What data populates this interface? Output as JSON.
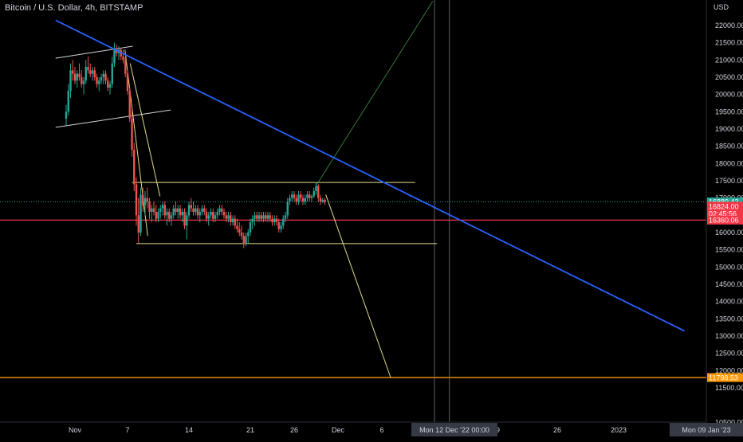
{
  "header": {
    "symbol_title": "Bitcoin / U.S. Dollar, 4h, BITSTAMP"
  },
  "currency_label": "USD",
  "colors": {
    "background": "#000000",
    "text": "#d1d4dc",
    "candle_up": "#26a69a",
    "candle_down": "#ef5350",
    "trendline": "#2962ff",
    "range_lines": "#e3dc8b",
    "channel": "#d1d4dc",
    "support_line": "#f23645",
    "target_line": "#ff9800",
    "current_price_box": "#26a69a",
    "last_close_box": "#f23645"
  },
  "chart_data": {
    "type": "candlestick",
    "title": "Bitcoin / U.S. Dollar, 4h, BITSTAMP",
    "ylabel": "USD",
    "ylim": [
      10500,
      22500
    ],
    "y_ticks": [
      22000,
      21500,
      21000,
      20500,
      20000,
      19500,
      19000,
      18500,
      18000,
      17500,
      17000,
      16500,
      16000,
      15500,
      15000,
      14500,
      14000,
      13500,
      13000,
      12500,
      12000,
      11500,
      10500
    ],
    "y_tick_labels": [
      "22000.00",
      "21500.00",
      "21000.00",
      "20500.00",
      "20000.00",
      "19500.00",
      "19000.00",
      "18500.00",
      "18000.00",
      "17500.00",
      "17000.00",
      "16500.00",
      "16000.00",
      "15500.00",
      "15000.00",
      "14500.00",
      "14000.00",
      "13500.00",
      "13000.00",
      "12500.00",
      "12000.00",
      "11500.00",
      "10500.00"
    ],
    "x_ticks": [
      {
        "day": -6,
        "label": "Nov"
      },
      {
        "day": 0,
        "label": "7"
      },
      {
        "day": 7,
        "label": "14"
      },
      {
        "day": 14,
        "label": "21"
      },
      {
        "day": 19,
        "label": "26"
      },
      {
        "day": 24,
        "label": "Dec"
      },
      {
        "day": 29,
        "label": "6"
      },
      {
        "day": 42,
        "label": "19"
      },
      {
        "day": 49,
        "label": "26"
      },
      {
        "day": 56,
        "label": "2023"
      }
    ],
    "x_highlight_labels": [
      {
        "day": 35,
        "label": "Mon 12 Dec '22   00:00"
      },
      {
        "day": 35.5,
        "label": "00:00"
      },
      {
        "day": 63,
        "label": "Mon 09 Jan '23"
      }
    ],
    "price_labels": [
      {
        "value": 16889.43,
        "text": "16889.43",
        "style": "current"
      },
      {
        "value": 16824.0,
        "text": "16824.00",
        "style": "last",
        "countdown": "02:45:56"
      },
      {
        "value": 16360.06,
        "text": "16360.06",
        "style": "support"
      },
      {
        "value": 11798.53,
        "text": "11798.53",
        "style": "target"
      }
    ],
    "candles_ohlc": [
      [
        -7.0,
        19300,
        19700,
        19100,
        19500
      ],
      [
        -6.75,
        19500,
        20300,
        19400,
        20100
      ],
      [
        -6.5,
        20100,
        20900,
        19900,
        20700
      ],
      [
        -6.25,
        20700,
        21000,
        20400,
        20600
      ],
      [
        -6.0,
        20600,
        20800,
        20300,
        20400
      ],
      [
        -5.75,
        20400,
        20700,
        20200,
        20600
      ],
      [
        -5.5,
        20600,
        20900,
        20400,
        20500
      ],
      [
        -5.25,
        20500,
        20700,
        20200,
        20300
      ],
      [
        -5.0,
        20300,
        20500,
        20000,
        20400
      ],
      [
        -4.75,
        20400,
        21000,
        20300,
        20800
      ],
      [
        -4.5,
        20800,
        21100,
        20600,
        20700
      ],
      [
        -4.25,
        20700,
        20900,
        20500,
        20600
      ],
      [
        -4.0,
        20600,
        20800,
        20400,
        20700
      ],
      [
        -3.75,
        20700,
        20800,
        20400,
        20500
      ],
      [
        -3.5,
        20500,
        20600,
        20200,
        20300
      ],
      [
        -3.25,
        20300,
        20500,
        20100,
        20400
      ],
      [
        -3.0,
        20400,
        20600,
        20300,
        20500
      ],
      [
        -2.75,
        20500,
        20700,
        20300,
        20600
      ],
      [
        -2.5,
        20600,
        20700,
        20300,
        20400
      ],
      [
        -2.25,
        20400,
        20500,
        20100,
        20200
      ],
      [
        -2.0,
        20200,
        20400,
        20000,
        20300
      ],
      [
        -1.75,
        20300,
        21100,
        20200,
        20900
      ],
      [
        -1.5,
        20900,
        21500,
        20800,
        21300
      ],
      [
        -1.25,
        21300,
        21450,
        21100,
        21200
      ],
      [
        -1.0,
        21200,
        21400,
        21000,
        21300
      ],
      [
        -0.75,
        21300,
        21350,
        21000,
        21100
      ],
      [
        -0.5,
        21100,
        21300,
        20900,
        21000
      ],
      [
        -0.25,
        21000,
        21100,
        20500,
        20600
      ],
      [
        0.0,
        20600,
        20700,
        20000,
        20100
      ],
      [
        0.25,
        20100,
        20200,
        19200,
        19300
      ],
      [
        0.5,
        19300,
        19600,
        18200,
        18400
      ],
      [
        0.75,
        18400,
        18600,
        17200,
        17400
      ],
      [
        1.0,
        17400,
        17600,
        16200,
        16500
      ],
      [
        1.25,
        16500,
        17000,
        15700,
        16000
      ],
      [
        1.5,
        16000,
        17300,
        15900,
        17100
      ],
      [
        1.75,
        17100,
        17300,
        16600,
        16800
      ],
      [
        2.0,
        16800,
        17200,
        16500,
        17000
      ],
      [
        2.25,
        17000,
        17300,
        16700,
        16900
      ],
      [
        2.5,
        16900,
        17000,
        16400,
        16600
      ],
      [
        2.75,
        16600,
        16800,
        16300,
        16700
      ],
      [
        3.0,
        16700,
        16900,
        16500,
        16600
      ],
      [
        3.25,
        16600,
        16800,
        16300,
        16400
      ],
      [
        3.5,
        16400,
        16700,
        16300,
        16600
      ],
      [
        3.75,
        16600,
        16800,
        16400,
        16700
      ],
      [
        4.0,
        16700,
        16900,
        16500,
        16800
      ],
      [
        4.25,
        16800,
        16900,
        16400,
        16500
      ],
      [
        4.5,
        16500,
        16700,
        16200,
        16600
      ],
      [
        4.75,
        16600,
        16700,
        16300,
        16400
      ],
      [
        5.0,
        16400,
        16600,
        16200,
        16500
      ],
      [
        5.25,
        16500,
        16800,
        16400,
        16700
      ],
      [
        5.5,
        16700,
        16900,
        16500,
        16600
      ],
      [
        5.75,
        16600,
        16800,
        16400,
        16700
      ],
      [
        6.0,
        16700,
        16800,
        16400,
        16500
      ],
      [
        6.25,
        16500,
        16700,
        16300,
        16600
      ],
      [
        6.5,
        16600,
        16700,
        16100,
        16200
      ],
      [
        6.75,
        16200,
        16600,
        15800,
        16500
      ],
      [
        7.0,
        16500,
        16900,
        16400,
        16800
      ],
      [
        7.25,
        16800,
        17000,
        16600,
        16700
      ],
      [
        7.5,
        16700,
        16900,
        16500,
        16600
      ],
      [
        7.75,
        16600,
        16800,
        16500,
        16700
      ],
      [
        8.0,
        16700,
        16800,
        16400,
        16500
      ],
      [
        8.25,
        16500,
        16700,
        16300,
        16600
      ],
      [
        8.5,
        16600,
        16800,
        16500,
        16700
      ],
      [
        8.75,
        16700,
        16800,
        16500,
        16600
      ],
      [
        9.0,
        16600,
        16700,
        16300,
        16400
      ],
      [
        9.25,
        16400,
        16600,
        16200,
        16500
      ],
      [
        9.5,
        16500,
        16700,
        16400,
        16600
      ],
      [
        9.75,
        16600,
        16700,
        16300,
        16400
      ],
      [
        10.0,
        16400,
        16600,
        16300,
        16500
      ],
      [
        10.25,
        16500,
        16700,
        16400,
        16600
      ],
      [
        10.5,
        16600,
        16800,
        16500,
        16700
      ],
      [
        10.75,
        16700,
        16800,
        16500,
        16600
      ],
      [
        11.0,
        16600,
        16700,
        16400,
        16500
      ],
      [
        11.25,
        16500,
        16600,
        16300,
        16400
      ],
      [
        11.5,
        16400,
        16600,
        16300,
        16500
      ],
      [
        11.75,
        16500,
        16600,
        16200,
        16300
      ],
      [
        12.0,
        16300,
        16500,
        16200,
        16400
      ],
      [
        12.25,
        16400,
        16500,
        16100,
        16200
      ],
      [
        12.5,
        16200,
        16400,
        16000,
        16100
      ],
      [
        12.75,
        16100,
        16300,
        15900,
        16000
      ],
      [
        13.0,
        16000,
        16200,
        15800,
        15900
      ],
      [
        13.25,
        15900,
        16000,
        15550,
        15700
      ],
      [
        13.5,
        15700,
        16000,
        15600,
        15900
      ],
      [
        13.75,
        15900,
        16100,
        15700,
        16000
      ],
      [
        14.0,
        16000,
        16400,
        15900,
        16300
      ],
      [
        14.25,
        16300,
        16500,
        16100,
        16400
      ],
      [
        14.5,
        16400,
        16600,
        16200,
        16500
      ],
      [
        14.75,
        16500,
        16600,
        16300,
        16400
      ],
      [
        15.0,
        16400,
        16600,
        16300,
        16500
      ],
      [
        15.25,
        16500,
        16600,
        16300,
        16400
      ],
      [
        15.5,
        16400,
        16600,
        16300,
        16500
      ],
      [
        15.75,
        16500,
        16600,
        16300,
        16400
      ],
      [
        16.0,
        16400,
        16600,
        16300,
        16500
      ],
      [
        16.25,
        16500,
        16600,
        16300,
        16400
      ],
      [
        16.5,
        16400,
        16500,
        16200,
        16300
      ],
      [
        16.75,
        16300,
        16500,
        16200,
        16400
      ],
      [
        17.0,
        16400,
        16500,
        16200,
        16300
      ],
      [
        17.25,
        16300,
        16400,
        16000,
        16100
      ],
      [
        17.5,
        16100,
        16300,
        16000,
        16200
      ],
      [
        17.75,
        16200,
        16500,
        16100,
        16400
      ],
      [
        18.0,
        16400,
        16600,
        16300,
        16500
      ],
      [
        18.25,
        16500,
        17000,
        16400,
        16900
      ],
      [
        18.5,
        16900,
        17100,
        16800,
        17000
      ],
      [
        18.75,
        17000,
        17200,
        16900,
        17100
      ],
      [
        19.0,
        17100,
        17200,
        16900,
        17000
      ],
      [
        19.25,
        17000,
        17100,
        16800,
        16900
      ],
      [
        19.5,
        16900,
        17200,
        16800,
        17100
      ],
      [
        19.75,
        17100,
        17200,
        16900,
        17000
      ],
      [
        20.0,
        17000,
        17100,
        16800,
        16900
      ],
      [
        20.25,
        16900,
        17100,
        16800,
        17000
      ],
      [
        20.5,
        17000,
        17200,
        16900,
        17100
      ],
      [
        20.75,
        17100,
        17200,
        16900,
        17000
      ],
      [
        21.0,
        17000,
        17100,
        16900,
        17050
      ],
      [
        21.25,
        17050,
        17300,
        17000,
        17200
      ],
      [
        21.5,
        17200,
        17450,
        17100,
        17350
      ],
      [
        21.75,
        17350,
        17400,
        16900,
        17000
      ],
      [
        22.0,
        17000,
        17100,
        16800,
        16900
      ],
      [
        22.25,
        16900,
        17000,
        16850,
        16950
      ],
      [
        22.5,
        16950,
        17000,
        16800,
        16889
      ]
    ]
  },
  "drawings": {
    "trendline": [
      [
        -8.2,
        22150
      ],
      [
        63.5,
        13150
      ]
    ],
    "channel_upper": [
      [
        -8.2,
        21050
      ],
      [
        0.6,
        21400
      ]
    ],
    "channel_lower": [
      [
        -8.2,
        19050
      ],
      [
        4.9,
        19550
      ]
    ],
    "range_high": [
      [
        0.5,
        17450
      ],
      [
        32.8,
        17450
      ]
    ],
    "range_low": [
      [
        1.0,
        15680
      ],
      [
        35.3,
        15680
      ]
    ],
    "fall_line_1": [
      [
        -0.3,
        21300
      ],
      [
        2.3,
        15900
      ]
    ],
    "fall_line_2": [
      [
        0.3,
        20900
      ],
      [
        3.7,
        17050
      ]
    ],
    "projection_down": [
      [
        22.6,
        17100
      ],
      [
        30.0,
        11800
      ]
    ],
    "projection_up": [
      [
        21.6,
        17400
      ],
      [
        34.8,
        22700
      ]
    ],
    "support_line_value": 16360.06,
    "target_line_value": 11798.53,
    "current_dotted_value": 16889.43,
    "vertical_line_days": [
      35,
      36.7
    ]
  }
}
